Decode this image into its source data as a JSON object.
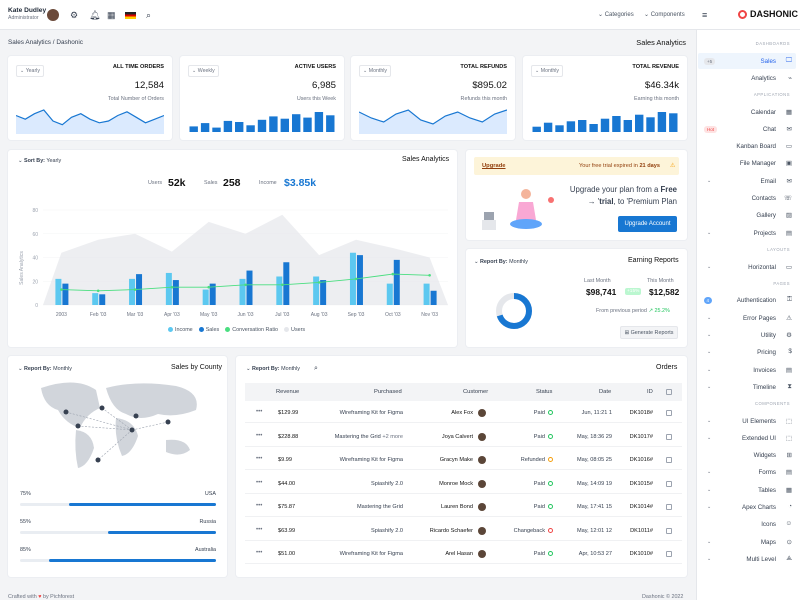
{
  "header": {
    "user_name": "Kate Dudley",
    "user_role": "Administrator",
    "categories": "Categories",
    "components": "Components",
    "brand": "DASHONIC"
  },
  "breadcrumb": {
    "parent": "Sales Analytics",
    "current": "Dashonic"
  },
  "page_title": "Sales Analytics",
  "stats": [
    {
      "period": "Yearly",
      "label": "ALL TIME ORDERS",
      "value": "12,584",
      "sub": "Total Number of Orders"
    },
    {
      "period": "Weekly",
      "label": "ACTIVE USERS",
      "value": "6,985",
      "sub": "Users this Week"
    },
    {
      "period": "Monthly",
      "label": "TOTAL REFUNDS",
      "value": "$895.02",
      "sub": "Refunds this month"
    },
    {
      "period": "Monthly",
      "label": "TOTAL REVENUE",
      "value": "$46.34k",
      "sub": "Earning this month"
    }
  ],
  "sales_analytics": {
    "sort": "Sort By:",
    "sort_value": "Yearly",
    "title": "Sales Analytics",
    "users_label": "Users",
    "users": "52k",
    "sales_label": "Sales",
    "sales": "258",
    "income_label": "Income",
    "income": "$3.85k",
    "legend": [
      "Income",
      "Sales",
      "Conversation Ratio",
      "Users"
    ]
  },
  "chart_data": {
    "type": "bar",
    "ylabel": "Sales Analytics",
    "ylim": [
      0,
      80
    ],
    "yticks": [
      "0",
      "20",
      "40",
      "60",
      "80"
    ],
    "categories": [
      "2003",
      "Feb '03",
      "Mar '03",
      "Apr '03",
      "May '03",
      "Jun '03",
      "Jul '03",
      "Aug '03",
      "Sep '03",
      "Oct '03",
      "Nov '03"
    ],
    "series": [
      {
        "name": "Income",
        "type": "bar",
        "color": "#5cc8f0",
        "values": [
          22,
          10,
          22,
          27,
          13,
          22,
          24,
          24,
          44,
          18,
          18
        ]
      },
      {
        "name": "Sales",
        "type": "bar",
        "color": "#1877d2",
        "values": [
          18,
          9,
          26,
          21,
          18,
          29,
          36,
          21,
          42,
          38,
          12
        ]
      },
      {
        "name": "Conversation Ratio",
        "type": "line",
        "color": "#4ade80",
        "values": [
          13,
          12,
          13,
          15,
          15,
          17,
          17,
          19,
          22,
          26,
          25
        ]
      },
      {
        "name": "Users",
        "type": "area",
        "color": "#e5e7eb",
        "values": [
          44,
          55,
          60,
          45,
          70,
          60,
          76,
          42,
          55,
          48,
          40
        ]
      }
    ]
  },
  "upgrade": {
    "link": "Upgrade",
    "notice": "Your free trial expired in",
    "days": "21 days",
    "line1": "Upgrade your plan from a",
    "free": "Free",
    "line2": "trial",
    "line3": ", to 'Premium Plan",
    "button": "Upgrade Account"
  },
  "earning": {
    "report": "Report By:",
    "report_value": "Monthly",
    "title": "Earning Reports",
    "last_label": "Last Month",
    "last": "$98,741",
    "this_label": "This Month",
    "this": "$12,582",
    "badge": "+15%",
    "prev_label": "From previous period",
    "prev": "25.2%",
    "button": "Generate Reports",
    "donut_pct": 70
  },
  "county": {
    "report": "Report By:",
    "report_value": "Monthly",
    "title": "Sales by County",
    "rows": [
      {
        "pct": "75%",
        "name": "USA",
        "fill": 0.75
      },
      {
        "pct": "55%",
        "name": "Russia",
        "fill": 0.55
      },
      {
        "pct": "85%",
        "name": "Australia",
        "fill": 0.85
      }
    ]
  },
  "orders": {
    "report": "Report By:",
    "report_value": "Monthly",
    "title": "Orders",
    "headers": [
      "Revenue",
      "Purchased",
      "Customer",
      "Status",
      "Date",
      "ID"
    ],
    "rows": [
      {
        "rev": "$129.99",
        "item": "Wireframing Kit for Figma",
        "more": "",
        "cust": "Alex Fox",
        "status": "Paid",
        "date": "Jun, 11:21 1",
        "id": "DK1018#"
      },
      {
        "rev": "$228.88",
        "item": "Mastering the Grid",
        "more": "+2 more",
        "cust": "Joya Calvert",
        "status": "Paid",
        "date": "May, 18:36 29",
        "id": "DK1017#"
      },
      {
        "rev": "$9.99",
        "item": "Wireframing Kit for Figma",
        "more": "",
        "cust": "Gracyn Make",
        "status": "Refunded",
        "date": "May, 08:05 25",
        "id": "DK1016#"
      },
      {
        "rev": "$44.00",
        "item": "Spiashify 2.0",
        "more": "",
        "cust": "Monroe Mock",
        "status": "Paid",
        "date": "May, 14:09 19",
        "id": "DK1015#"
      },
      {
        "rev": "$75.87",
        "item": "Mastering the Grid",
        "more": "",
        "cust": "Lauren Bond",
        "status": "Paid",
        "date": "May, 17:41 15",
        "id": "DK1014#"
      },
      {
        "rev": "$63.99",
        "item": "Spiashify 2.0",
        "more": "",
        "cust": "Ricardo Schaefer",
        "status": "Changeback",
        "date": "May, 12:01 12",
        "id": "DK1011#"
      },
      {
        "rev": "$51.00",
        "item": "Wireframing Kit for Figma",
        "more": "",
        "cust": "Arel Hasan",
        "status": "Paid",
        "date": "Apr, 10:53 27",
        "id": "DK1010#"
      }
    ]
  },
  "sidebar": {
    "sections": [
      "DASHBOARDS",
      "APPLICATIONS",
      "LAYOUTS",
      "PAGES",
      "COMPONENTS"
    ],
    "items": [
      {
        "label": "Sales",
        "badge": "+5"
      },
      {
        "label": "Analytics"
      },
      {
        "label": "Calendar"
      },
      {
        "label": "Chat",
        "badge": "Hot"
      },
      {
        "label": "Kanban Board"
      },
      {
        "label": "File Manager"
      },
      {
        "label": "Email"
      },
      {
        "label": "Contacts"
      },
      {
        "label": "Gallery"
      },
      {
        "label": "Projects"
      },
      {
        "label": "Horizontal"
      },
      {
        "label": "Authentication",
        "badge": "4"
      },
      {
        "label": "Error Pages"
      },
      {
        "label": "Utility"
      },
      {
        "label": "Pricing"
      },
      {
        "label": "Invoices"
      },
      {
        "label": "Timeline"
      },
      {
        "label": "UI Elements"
      },
      {
        "label": "Extended UI"
      },
      {
        "label": "Widgets"
      },
      {
        "label": "Forms"
      },
      {
        "label": "Tables"
      },
      {
        "label": "Apex Charts"
      },
      {
        "label": "Icons"
      },
      {
        "label": "Maps"
      },
      {
        "label": "Multi Level"
      }
    ]
  },
  "footer": {
    "left": "Crafted with",
    "by": "by Pichforest",
    "right": "Dashonic © 2022"
  }
}
